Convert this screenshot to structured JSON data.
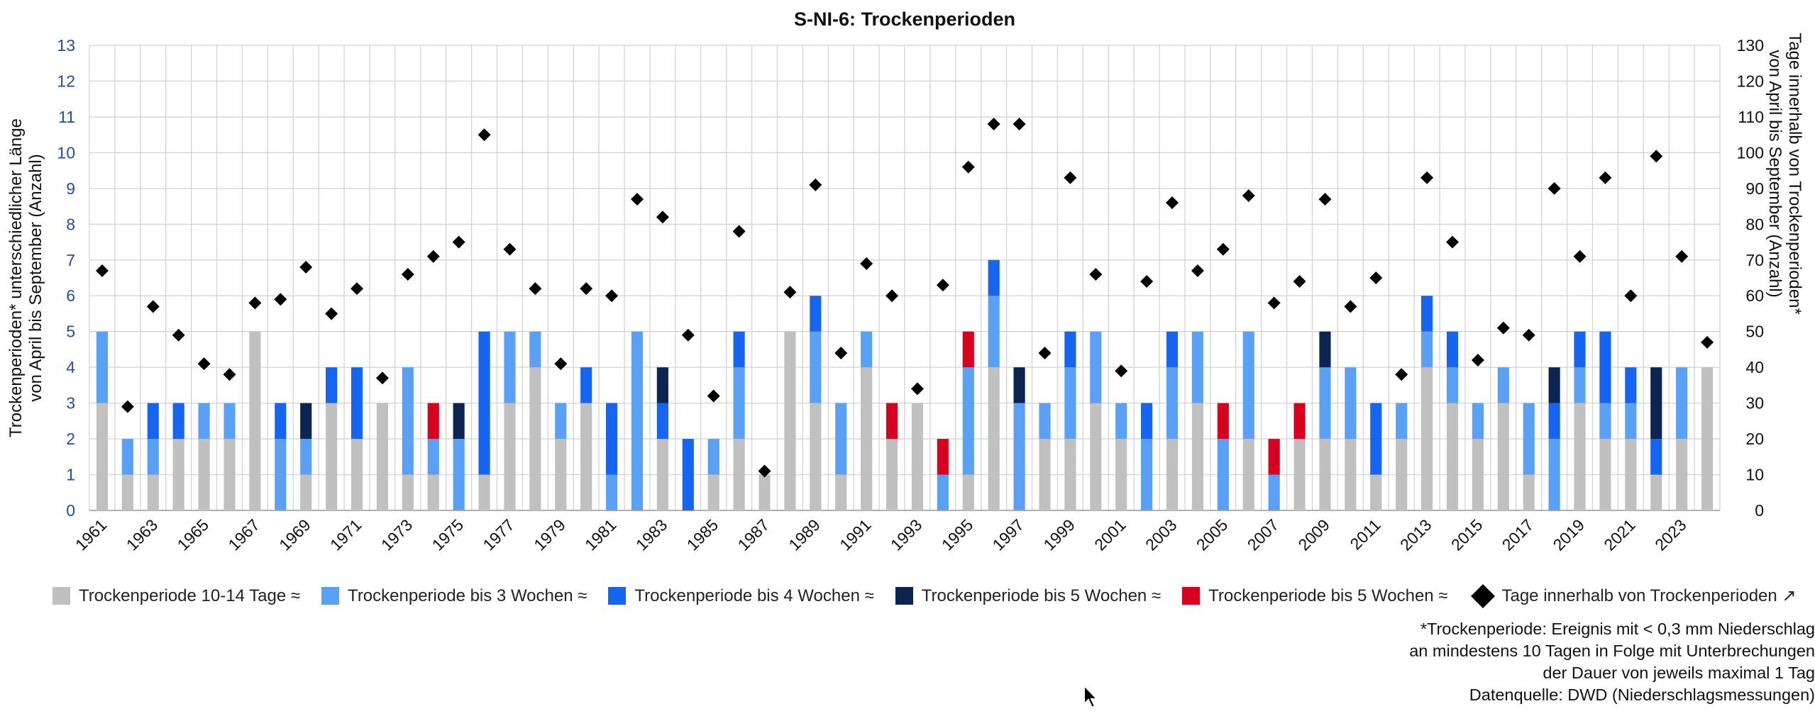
{
  "chart_data": {
    "type": "bar",
    "title": "S-NI-6: Trockenperioden",
    "ylabel_left": [
      "Trockenperioden* unterschiedlicher Länge",
      "von April bis September (Anzahl)"
    ],
    "ylabel_right": [
      "Tage innerhalb von Trockenperioden*",
      "von April bis September (Anzahl)"
    ],
    "ylim_left": [
      0,
      13
    ],
    "ylim_right": [
      0,
      130
    ],
    "yticks_left": [
      "0",
      "1",
      "2",
      "3",
      "4",
      "5",
      "6",
      "7",
      "8",
      "9",
      "10",
      "11",
      "12",
      "13"
    ],
    "yticks_right": [
      "0",
      "10",
      "20",
      "30",
      "40",
      "50",
      "60",
      "70",
      "80",
      "90",
      "100",
      "110",
      "120",
      "130"
    ],
    "grid": true,
    "legend_position": "bottom",
    "x": [
      1961,
      1962,
      1963,
      1964,
      1965,
      1966,
      1967,
      1968,
      1969,
      1970,
      1971,
      1972,
      1973,
      1974,
      1975,
      1976,
      1977,
      1978,
      1979,
      1980,
      1981,
      1982,
      1983,
      1984,
      1985,
      1986,
      1987,
      1988,
      1989,
      1990,
      1991,
      1992,
      1993,
      1994,
      1995,
      1996,
      1997,
      1998,
      1999,
      2000,
      2001,
      2002,
      2003,
      2004,
      2005,
      2006,
      2007,
      2008,
      2009,
      2010,
      2011,
      2012,
      2013,
      2014,
      2015,
      2016,
      2017,
      2018,
      2019,
      2020,
      2021,
      2022,
      2023,
      2024
    ],
    "x_tick_labels": [
      "1961",
      "1963",
      "1965",
      "1967",
      "1969",
      "1971",
      "1973",
      "1975",
      "1977",
      "1979",
      "1981",
      "1983",
      "1985",
      "1987",
      "1989",
      "1991",
      "1993",
      "1995",
      "1997",
      "1999",
      "2001",
      "2003",
      "2005",
      "2007",
      "2009",
      "2011",
      "2013",
      "2015",
      "2017",
      "2019",
      "2021",
      "2023"
    ],
    "series": [
      {
        "name": "Trockenperiode 10-14 Tage ≈",
        "color": "#c0c0c0",
        "values": [
          3,
          1,
          1,
          2,
          2,
          2,
          5,
          0,
          1,
          3,
          2,
          3,
          1,
          1,
          0,
          1,
          3,
          4,
          2,
          3,
          0,
          0,
          2,
          0,
          1,
          2,
          1,
          5,
          3,
          1,
          4,
          2,
          3,
          0,
          1,
          4,
          0,
          2,
          2,
          3,
          2,
          0,
          2,
          3,
          0,
          2,
          0,
          2,
          2,
          2,
          1,
          2,
          4,
          3,
          2,
          3,
          1,
          0,
          3,
          2,
          2,
          1,
          2,
          4
        ]
      },
      {
        "name": "Trockenperiode bis 3 Wochen ≈",
        "color": "#5aa0f5",
        "values": [
          2,
          1,
          1,
          0,
          1,
          1,
          0,
          2,
          1,
          0,
          0,
          0,
          3,
          1,
          2,
          0,
          2,
          1,
          1,
          0,
          1,
          5,
          0,
          0,
          1,
          2,
          0,
          0,
          2,
          2,
          1,
          0,
          0,
          1,
          3,
          2,
          3,
          1,
          2,
          2,
          1,
          2,
          2,
          2,
          2,
          3,
          1,
          0,
          2,
          2,
          0,
          1,
          1,
          1,
          1,
          1,
          2,
          2,
          1,
          1,
          1,
          0,
          2,
          0
        ]
      },
      {
        "name": "Trockenperiode bis 4 Wochen ≈",
        "color": "#1565f0",
        "values": [
          0,
          0,
          1,
          1,
          0,
          0,
          0,
          1,
          0,
          1,
          2,
          0,
          0,
          0,
          0,
          4,
          0,
          0,
          0,
          1,
          2,
          0,
          1,
          2,
          0,
          1,
          0,
          0,
          1,
          0,
          0,
          0,
          0,
          0,
          0,
          1,
          0,
          0,
          1,
          0,
          0,
          1,
          1,
          0,
          0,
          0,
          0,
          0,
          0,
          0,
          2,
          0,
          1,
          1,
          0,
          0,
          0,
          1,
          1,
          2,
          1,
          1,
          0,
          0
        ]
      },
      {
        "name": "Trockenperiode bis 5 Wochen ≈",
        "color": "#0c2450",
        "values": [
          0,
          0,
          0,
          0,
          0,
          0,
          0,
          0,
          1,
          0,
          0,
          0,
          0,
          0,
          1,
          0,
          0,
          0,
          0,
          0,
          0,
          0,
          1,
          0,
          0,
          0,
          0,
          0,
          0,
          0,
          0,
          0,
          0,
          0,
          0,
          0,
          1,
          0,
          0,
          0,
          0,
          0,
          0,
          0,
          0,
          0,
          0,
          0,
          1,
          0,
          0,
          0,
          0,
          0,
          0,
          0,
          0,
          1,
          0,
          0,
          0,
          2,
          0,
          0
        ]
      },
      {
        "name": "Trockenperiode bis 5 Wochen ≈",
        "color": "#d8001f",
        "values": [
          0,
          0,
          0,
          0,
          0,
          0,
          0,
          0,
          0,
          0,
          0,
          0,
          0,
          1,
          0,
          0,
          0,
          0,
          0,
          0,
          0,
          0,
          0,
          0,
          0,
          0,
          0,
          0,
          0,
          0,
          0,
          1,
          0,
          1,
          1,
          0,
          0,
          0,
          0,
          0,
          0,
          0,
          0,
          0,
          1,
          0,
          1,
          1,
          0,
          0,
          0,
          0,
          0,
          0,
          0,
          0,
          0,
          0,
          0,
          0,
          0,
          0,
          0,
          0
        ]
      }
    ],
    "line_series": {
      "name": "Tage innerhalb von Trockenperioden ↗",
      "axis": "right",
      "marker": "diamond",
      "color": "#000000",
      "values": [
        67,
        29,
        57,
        49,
        41,
        38,
        58,
        59,
        68,
        55,
        62,
        37,
        66,
        71,
        75,
        105,
        73,
        62,
        41,
        62,
        60,
        87,
        82,
        49,
        32,
        78,
        11,
        61,
        91,
        44,
        69,
        60,
        34,
        63,
        96,
        108,
        108,
        44,
        93,
        66,
        39,
        64,
        86,
        67,
        73,
        88,
        58,
        64,
        87,
        57,
        65,
        38,
        93,
        75,
        42,
        51,
        49,
        90,
        71,
        93,
        60,
        99,
        71,
        47
      ]
    }
  },
  "footnote": {
    "line1": "*Trockenperiode: Ereignis mit < 0,3 mm Niederschlag",
    "line2": "an mindestens 10 Tagen in Folge mit Unterbrechungen",
    "line3": "der Dauer von jeweils maximal 1 Tag",
    "line4": "Datenquelle: DWD (Niederschlagsmessungen)"
  },
  "colors": {
    "axis_left_text": "#1f4fa0",
    "grid": "#d3d3d3"
  }
}
